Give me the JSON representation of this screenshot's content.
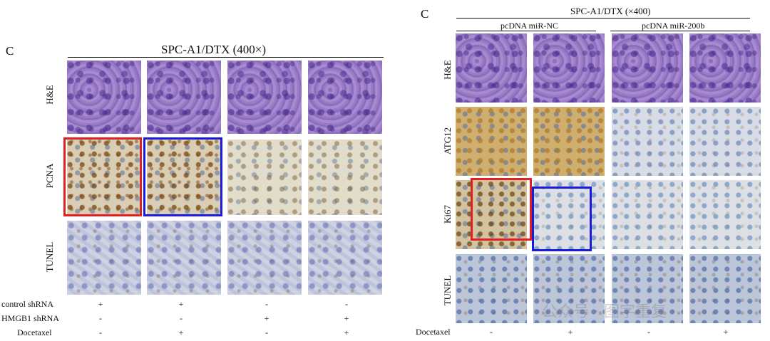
{
  "colors": {
    "highlight_red": "#e02020",
    "highlight_blue": "#1a1adf"
  },
  "left": {
    "panel_letter": "C",
    "title": "SPC-A1/DTX (400×)",
    "rows": [
      "H&E",
      "PCNA",
      "TUNEL"
    ],
    "conditions": [
      {
        "label": "control shRNA",
        "signs": [
          "+",
          "+",
          "-",
          "-"
        ]
      },
      {
        "label": "HMGB1 shRNA",
        "signs": [
          "-",
          "-",
          "+",
          "+"
        ]
      },
      {
        "label": "Docetaxel",
        "signs": [
          "-",
          "+",
          "-",
          "+"
        ]
      }
    ]
  },
  "right": {
    "panel_letter": "C",
    "title": "SPC-A1/DTX (×400)",
    "groups": [
      "pcDNA miR-NC",
      "pcDNA miR-200b"
    ],
    "rows": [
      "H&E",
      "ATG12",
      "Ki67",
      "TUNEL"
    ],
    "conditions": [
      {
        "label": "Docetaxel",
        "signs": [
          "-",
          "+",
          "-",
          "+"
        ]
      }
    ]
  },
  "watermark": "公众号 · 图字重复"
}
